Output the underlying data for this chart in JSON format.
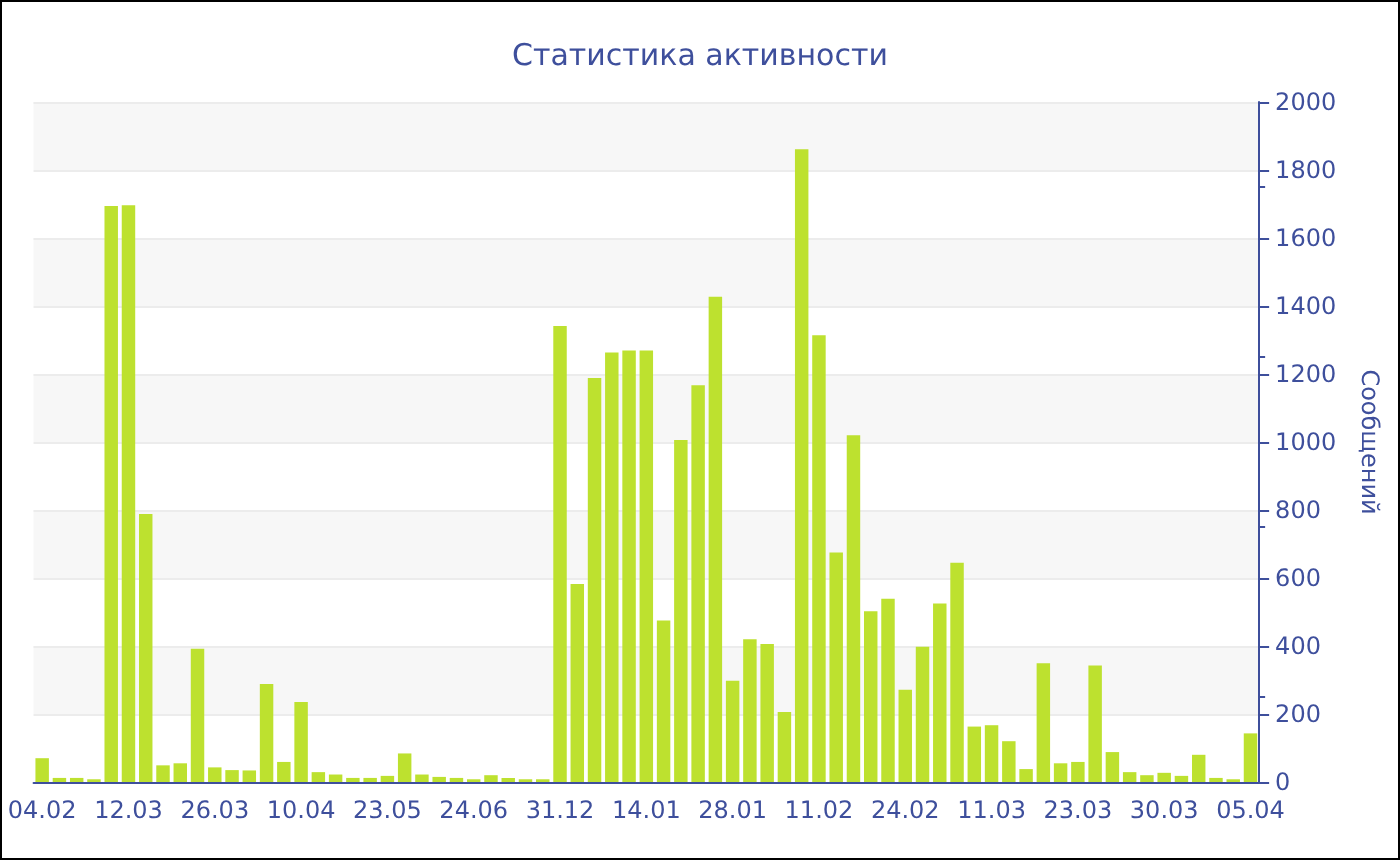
{
  "chart_data": {
    "type": "bar",
    "title": "Статистика активности",
    "ylabel": "Сообщений",
    "categories": [
      "04.02",
      null,
      null,
      null,
      null,
      "12.03",
      null,
      null,
      null,
      null,
      "26.03",
      null,
      null,
      null,
      null,
      "10.04",
      null,
      null,
      null,
      null,
      "23.05",
      null,
      null,
      null,
      null,
      "24.06",
      null,
      null,
      null,
      null,
      "31.12",
      null,
      null,
      null,
      null,
      "14.01",
      null,
      null,
      null,
      null,
      "28.01",
      null,
      null,
      null,
      null,
      "11.02",
      null,
      null,
      null,
      null,
      "24.02",
      null,
      null,
      null,
      null,
      "11.03",
      null,
      null,
      null,
      null,
      "23.03",
      null,
      null,
      null,
      null,
      "30.03",
      null,
      null,
      null,
      null,
      "05.04"
    ],
    "values": [
      70,
      12,
      12,
      8,
      1694,
      1696,
      788,
      49,
      55,
      392,
      43,
      35,
      34,
      288,
      59,
      235,
      29,
      22,
      12,
      12,
      18,
      84,
      22,
      15,
      12,
      8,
      20,
      12,
      8,
      8,
      1341,
      582,
      1188,
      1263,
      1269,
      1269,
      475,
      1006,
      1167,
      1427,
      298,
      420,
      406,
      206,
      1861,
      1314,
      675,
      1020,
      502,
      539,
      271,
      398,
      525,
      645,
      163,
      167,
      120,
      38,
      349,
      55,
      59,
      343,
      88,
      29,
      20,
      27,
      18,
      80,
      12,
      8,
      143
    ],
    "color": "#bde12f",
    "ylim": [
      0,
      2000
    ],
    "yticks": [
      0,
      200,
      400,
      600,
      800,
      1000,
      1200,
      1400,
      1600,
      1800,
      2000
    ],
    "grid": true
  }
}
